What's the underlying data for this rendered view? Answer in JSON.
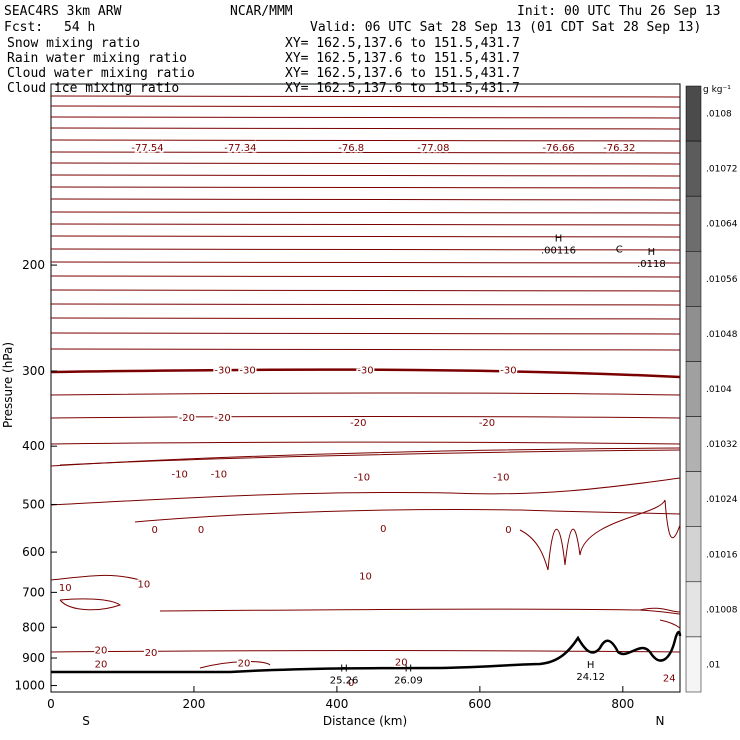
{
  "header": {
    "model": "SEAC4RS  3km ARW",
    "org": "NCAR/MMM",
    "init": "Init: 00 UTC Thu 26 Sep 13",
    "fcst_label": "Fcst:",
    "fcst_value": "54 h",
    "valid": "Valid: 06 UTC Sat 28 Sep 13 (01 CDT Sat 28 Sep 13)"
  },
  "legend": [
    {
      "label": "Snow mixing ratio",
      "xy": "XY=  162.5,137.6 to 151.5,431.7",
      "color": "#000000"
    },
    {
      "label": "Rain water mixing ratio",
      "xy": "XY=  162.5,137.6 to 151.5,431.7",
      "color": "#d00000"
    },
    {
      "label": "Cloud water mixing ratio",
      "xy": "XY=  162.5,137.6 to 151.5,431.7",
      "color": "#0000cc"
    },
    {
      "label": "Cloud ice mixing ratio",
      "xy": "XY=  162.5,137.6 to 151.5,431.7",
      "color": "#000000"
    }
  ],
  "chart_data": {
    "type": "cross-section contour",
    "xlabel": "Distance (km)",
    "ylabel": "Pressure (hPa)",
    "xlim": [
      0,
      880
    ],
    "ylim": [
      1025,
      100
    ],
    "y_scale": "log",
    "x_ticks": [
      0,
      200,
      400,
      600,
      800
    ],
    "y_ticks": [
      200,
      300,
      400,
      500,
      600,
      700,
      800,
      900,
      1000
    ],
    "x_end_labels": {
      "left": "S",
      "right": "N"
    },
    "colorbar": {
      "unit": "g kg⁻¹",
      "labels": [
        ".0108",
        ".01072",
        ".01064",
        ".01056",
        ".01048",
        ".0104",
        ".01032",
        ".01024",
        ".01016",
        ".01008",
        ".01"
      ]
    },
    "temperature_contour_labels": [
      {
        "text": "-77.54",
        "x": 135,
        "p": 128
      },
      {
        "text": "-77.34",
        "x": 265,
        "p": 128
      },
      {
        "text": "-76.8",
        "x": 420,
        "p": 128
      },
      {
        "text": "-77.08",
        "x": 535,
        "p": 128
      },
      {
        "text": "-76.66",
        "x": 710,
        "p": 128
      },
      {
        "text": "-76.32",
        "x": 795,
        "p": 128
      },
      {
        "text": "-30",
        "x": 240,
        "p": 300
      },
      {
        "text": "-30",
        "x": 275,
        "p": 300
      },
      {
        "text": "-30",
        "x": 440,
        "p": 300
      },
      {
        "text": "-30",
        "x": 640,
        "p": 300
      },
      {
        "text": "-20",
        "x": 190,
        "p": 360
      },
      {
        "text": "-20",
        "x": 240,
        "p": 360
      },
      {
        "text": "-20",
        "x": 430,
        "p": 367
      },
      {
        "text": "-20",
        "x": 610,
        "p": 367
      },
      {
        "text": "-10",
        "x": 180,
        "p": 447
      },
      {
        "text": "-10",
        "x": 235,
        "p": 447
      },
      {
        "text": "-10",
        "x": 435,
        "p": 452
      },
      {
        "text": "-10",
        "x": 630,
        "p": 452
      },
      {
        "text": "0",
        "x": 145,
        "p": 552
      },
      {
        "text": "0",
        "x": 210,
        "p": 552
      },
      {
        "text": "0",
        "x": 465,
        "p": 550
      },
      {
        "text": "0",
        "x": 640,
        "p": 552
      },
      {
        "text": "10",
        "x": 20,
        "p": 690
      },
      {
        "text": "10",
        "x": 130,
        "p": 680
      },
      {
        "text": "10",
        "x": 440,
        "p": 660
      },
      {
        "text": "20",
        "x": 70,
        "p": 876
      },
      {
        "text": "20",
        "x": 140,
        "p": 885
      },
      {
        "text": "20",
        "x": 70,
        "p": 925
      },
      {
        "text": "20",
        "x": 270,
        "p": 920
      },
      {
        "text": "20",
        "x": 490,
        "p": 917
      },
      {
        "text": "24",
        "x": 865,
        "p": 975
      },
      {
        "text": "0",
        "x": 420,
        "p": 992
      }
    ],
    "extrema_marks": [
      {
        "mark": "H",
        "value": ".00116",
        "x": 710,
        "p": 190
      },
      {
        "mark": "C",
        "value": "",
        "x": 795,
        "p": 198
      },
      {
        "mark": "H",
        "value": ".0118",
        "x": 840,
        "p": 200
      },
      {
        "mark": "H",
        "value": "25.26",
        "x": 410,
        "p": 985
      },
      {
        "mark": "H",
        "value": "26.09",
        "x": 500,
        "p": 985
      },
      {
        "mark": "H",
        "value": "24.12",
        "x": 755,
        "p": 972
      }
    ],
    "grid": false,
    "note_units": "temperature contours in °C"
  }
}
